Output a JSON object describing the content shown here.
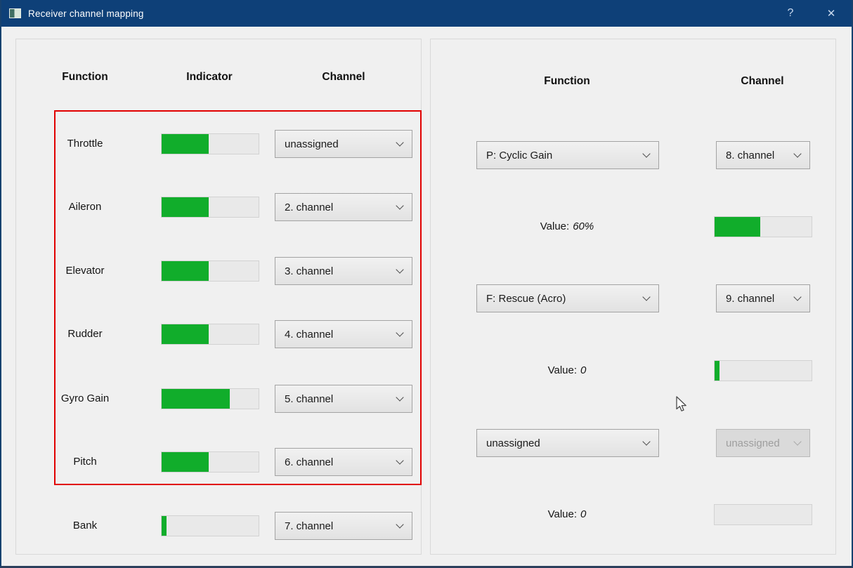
{
  "window": {
    "title": "Receiver channel mapping",
    "help": "?",
    "close": "✕"
  },
  "left_panel": {
    "col_function": "Function",
    "col_indicator": "Indicator",
    "col_channel": "Channel",
    "rows": [
      {
        "label": "Throttle",
        "fill": 48.5,
        "channel": "unassigned"
      },
      {
        "label": "Aileron",
        "fill": 48.5,
        "channel": "2. channel"
      },
      {
        "label": "Elevator",
        "fill": 48.5,
        "channel": "3. channel"
      },
      {
        "label": "Rudder",
        "fill": 48.5,
        "channel": "4. channel"
      },
      {
        "label": "Gyro Gain",
        "fill": 70,
        "channel": "5. channel"
      },
      {
        "label": "Pitch",
        "fill": 48.5,
        "channel": "6. channel"
      },
      {
        "label": "Bank",
        "fill": 5,
        "channel": "7. channel"
      }
    ]
  },
  "right_panel": {
    "col_function": "Function",
    "col_channel": "Channel",
    "units": [
      {
        "function": "P: Cyclic Gain",
        "channel": "8. channel",
        "channel_disabled": false,
        "value_label": "Value:",
        "value": "60%",
        "fill": 47
      },
      {
        "function": "F: Rescue (Acro)",
        "channel": "9. channel",
        "channel_disabled": false,
        "value_label": "Value:",
        "value": "0",
        "fill": 5
      },
      {
        "function": "unassigned",
        "channel": "unassigned",
        "channel_disabled": true,
        "value_label": "Value:",
        "value": "0",
        "fill": 0
      }
    ]
  },
  "colors": {
    "titlebar_blue": "#0e4078",
    "indicator_green": "#11ad2b",
    "highlight_red": "#e10000"
  }
}
